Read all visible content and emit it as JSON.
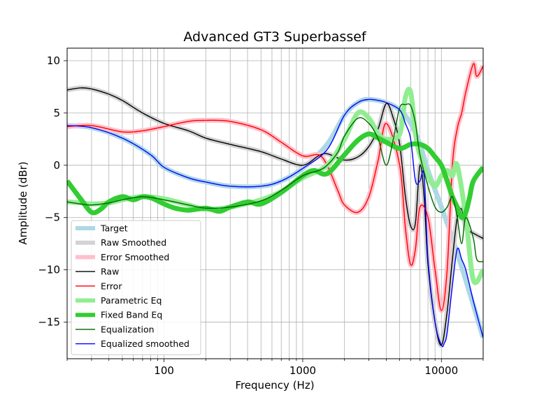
{
  "chart_data": {
    "type": "line",
    "title": "Advanced GT3 Superbassef",
    "xlabel": "Frequency (Hz)",
    "ylabel": "Amplitude (dBr)",
    "xscale": "log",
    "xlim": [
      20,
      20000
    ],
    "ylim": [
      -18.5,
      11.2
    ],
    "xticks": [
      100,
      1000,
      10000
    ],
    "xtick_labels": [
      "100",
      "1000",
      "10000"
    ],
    "yticks": [
      10,
      5,
      0,
      -5,
      -10,
      -15
    ],
    "ytick_labels": [
      "10",
      "5",
      "0",
      "−5",
      "−10",
      "−15"
    ],
    "grid": true,
    "legend_position": "bottom-left",
    "series": [
      {
        "name": "Target",
        "color": "#add8e6",
        "style": "thick",
        "x": [
          20,
          30,
          50,
          80,
          100,
          150,
          200,
          300,
          500,
          700,
          1000,
          1500,
          2000,
          2500,
          3000,
          4000,
          5000,
          6000,
          7000,
          8000,
          10000,
          12000,
          15000,
          20000
        ],
        "y": [
          3.8,
          3.6,
          2.6,
          1.0,
          -0.2,
          -1.2,
          -1.6,
          -2.0,
          -2.0,
          -1.5,
          -0.3,
          2.0,
          4.8,
          6.0,
          6.3,
          6.0,
          5.3,
          4.0,
          2.0,
          -0.5,
          -4.0,
          -7.0,
          -11.0,
          -16.5
        ]
      },
      {
        "name": "Raw Smoothed",
        "color": "#d3d3d3",
        "style": "thick",
        "x": [
          20,
          25,
          30,
          40,
          50,
          70,
          100,
          150,
          200,
          300,
          500,
          700,
          1000,
          1300,
          1500,
          2000,
          2500,
          3000,
          3500,
          4000,
          4500,
          5000,
          5500,
          6000,
          6500,
          7000,
          7500,
          8000,
          9000,
          10000,
          11000,
          12000,
          13000,
          14000,
          15000,
          17000,
          20000
        ],
        "y": [
          7.2,
          7.4,
          7.3,
          6.8,
          6.2,
          5.0,
          4.0,
          3.3,
          2.6,
          2.0,
          1.3,
          0.6,
          0.0,
          0.9,
          1.1,
          0.5,
          0.8,
          1.8,
          3.5,
          5.9,
          4.5,
          2.0,
          -3.0,
          -5.8,
          -5.5,
          0.0,
          -3.0,
          -9.5,
          -15.0,
          -17.2,
          -14.0,
          -9.0,
          -5.0,
          -4.2,
          -6.0,
          -6.5,
          -7.0
        ]
      },
      {
        "name": "Error Smoothed",
        "color": "#ffc0cb",
        "style": "thick",
        "x": [
          20,
          30,
          50,
          70,
          100,
          150,
          200,
          300,
          500,
          700,
          1000,
          1300,
          1500,
          1800,
          2000,
          2500,
          3000,
          3500,
          4000,
          5000,
          5500,
          6000,
          6500,
          7000,
          8000,
          9000,
          10000,
          11000,
          12000,
          13000,
          14000,
          15000,
          17000,
          18000,
          20000
        ],
        "y": [
          3.7,
          3.8,
          3.2,
          3.3,
          3.7,
          4.2,
          4.3,
          4.2,
          3.4,
          2.2,
          0.9,
          1.0,
          0.0,
          -2.5,
          -3.8,
          -4.5,
          -3.0,
          0.5,
          4.0,
          0.0,
          -6.0,
          -9.5,
          -8.0,
          -4.0,
          -5.0,
          -10.0,
          -13.9,
          -10.0,
          0.0,
          3.5,
          5.0,
          7.0,
          9.7,
          8.5,
          9.5
        ]
      },
      {
        "name": "Raw",
        "color": "#000000",
        "style": "thin",
        "x": [
          20,
          25,
          30,
          40,
          50,
          70,
          100,
          150,
          200,
          300,
          500,
          700,
          1000,
          1300,
          1500,
          2000,
          2500,
          3000,
          3500,
          4000,
          4500,
          5000,
          5500,
          6000,
          6500,
          7000,
          7500,
          8000,
          9000,
          10000,
          11000,
          12000,
          13000,
          14000,
          15000,
          17000,
          20000
        ],
        "y": [
          7.2,
          7.4,
          7.3,
          6.8,
          6.2,
          5.0,
          4.0,
          3.3,
          2.6,
          2.0,
          1.3,
          0.6,
          0.0,
          0.9,
          1.1,
          0.5,
          0.8,
          1.8,
          3.5,
          5.9,
          4.5,
          2.0,
          -3.0,
          -5.8,
          -5.5,
          0.0,
          -3.0,
          -9.5,
          -15.0,
          -17.2,
          -14.0,
          -9.0,
          -5.0,
          -4.2,
          -6.0,
          -6.5,
          -7.0
        ]
      },
      {
        "name": "Error",
        "color": "#ff0000",
        "style": "thin",
        "x": [
          20,
          30,
          50,
          70,
          100,
          150,
          200,
          300,
          500,
          700,
          1000,
          1300,
          1500,
          1800,
          2000,
          2500,
          3000,
          3500,
          4000,
          5000,
          5500,
          6000,
          6500,
          7000,
          8000,
          9000,
          10000,
          11000,
          12000,
          13000,
          14000,
          15000,
          17000,
          18000,
          20000
        ],
        "y": [
          3.7,
          3.8,
          3.2,
          3.3,
          3.7,
          4.2,
          4.3,
          4.2,
          3.4,
          2.2,
          0.9,
          1.0,
          0.0,
          -2.5,
          -3.8,
          -4.5,
          -3.0,
          0.5,
          4.0,
          0.0,
          -6.0,
          -9.5,
          -8.0,
          -4.0,
          -5.0,
          -10.0,
          -13.9,
          -10.0,
          0.0,
          3.5,
          5.0,
          7.0,
          9.7,
          8.5,
          9.5
        ]
      },
      {
        "name": "Parametric Eq",
        "color": "#90ee90",
        "style": "thick",
        "x": [
          20,
          25,
          30,
          40,
          50,
          70,
          100,
          150,
          200,
          300,
          500,
          700,
          1000,
          1500,
          2000,
          2500,
          3000,
          3500,
          4000,
          5000,
          5500,
          6000,
          6500,
          7000,
          8000,
          9000,
          10000,
          11000,
          12000,
          13000,
          15000,
          17000,
          20000
        ],
        "y": [
          -3.5,
          -3.6,
          -3.7,
          -3.6,
          -3.3,
          -3.0,
          -3.2,
          -3.8,
          -4.2,
          -4.0,
          -3.3,
          -2.5,
          -1.2,
          0.0,
          2.5,
          5.0,
          4.5,
          3.0,
          2.5,
          3.0,
          6.5,
          7.0,
          3.0,
          1.0,
          -1.0,
          -2.0,
          -1.0,
          -0.5,
          -1.0,
          0.0,
          -5.0,
          -11.0,
          -10.0
        ]
      },
      {
        "name": "Fixed Band Eq",
        "color": "#32cd32",
        "style": "thick",
        "x": [
          20,
          25,
          30,
          35,
          40,
          50,
          60,
          70,
          80,
          90,
          100,
          120,
          150,
          200,
          250,
          300,
          400,
          500,
          700,
          1000,
          1200,
          1500,
          2000,
          2500,
          3000,
          3500,
          4000,
          5000,
          6000,
          7000,
          8000,
          9000,
          10000,
          11000,
          12000,
          13000,
          14000,
          15000,
          16000,
          17000,
          20000
        ],
        "y": [
          -1.5,
          -3.2,
          -4.5,
          -4.2,
          -3.5,
          -3.0,
          -3.3,
          -3.0,
          -3.1,
          -3.4,
          -3.7,
          -4.1,
          -4.3,
          -4.1,
          -4.4,
          -4.0,
          -3.5,
          -3.7,
          -2.6,
          -1.0,
          -0.5,
          -0.8,
          1.0,
          2.4,
          3.0,
          2.6,
          2.2,
          1.6,
          2.0,
          2.0,
          1.6,
          0.8,
          0.0,
          -1.5,
          -3.0,
          -4.0,
          -5.0,
          -4.5,
          -3.0,
          -1.5,
          -0.2
        ]
      },
      {
        "name": "Equalization",
        "color": "#006400",
        "style": "thin",
        "x": [
          20,
          25,
          30,
          40,
          50,
          70,
          100,
          150,
          200,
          300,
          500,
          700,
          1000,
          1300,
          1500,
          1800,
          2000,
          2500,
          3000,
          3500,
          4000,
          4500,
          5000,
          5500,
          6000,
          6500,
          7000,
          8000,
          9000,
          10000,
          11000,
          12000,
          13000,
          14000,
          15000,
          17000,
          18000,
          20000
        ],
        "y": [
          -3.5,
          -3.7,
          -3.8,
          -3.6,
          -3.3,
          -3.0,
          -3.3,
          -3.8,
          -4.1,
          -4.0,
          -3.4,
          -2.4,
          -1.0,
          -0.5,
          0.0,
          1.3,
          2.8,
          4.5,
          4.0,
          2.5,
          0.0,
          2.5,
          5.5,
          5.8,
          5.7,
          4.0,
          1.0,
          -2.0,
          -4.0,
          -4.5,
          -4.0,
          -3.0,
          -5.0,
          -7.5,
          -5.0,
          -7.0,
          -9.0,
          -9.2
        ]
      },
      {
        "name": "Equalized smoothed",
        "color": "#0000ff",
        "style": "thin",
        "x": [
          20,
          30,
          50,
          80,
          100,
          150,
          200,
          300,
          500,
          700,
          1000,
          1500,
          2000,
          2500,
          3000,
          3500,
          4000,
          5000,
          5500,
          6000,
          6500,
          7000,
          7500,
          8000,
          9000,
          10000,
          10500,
          11000,
          12000,
          13000,
          14000,
          15000,
          17000,
          20000
        ],
        "y": [
          3.8,
          3.6,
          2.6,
          1.0,
          -0.2,
          -1.2,
          -1.6,
          -2.0,
          -2.0,
          -1.5,
          -0.3,
          1.5,
          4.8,
          6.0,
          6.3,
          6.2,
          6.0,
          5.3,
          4.0,
          2.5,
          -1.5,
          -1.5,
          -1.0,
          -9.0,
          -15.0,
          -17.2,
          -17.0,
          -16.0,
          -11.5,
          -8.0,
          -9.0,
          -10.0,
          -13.0,
          -16.5
        ]
      }
    ]
  }
}
